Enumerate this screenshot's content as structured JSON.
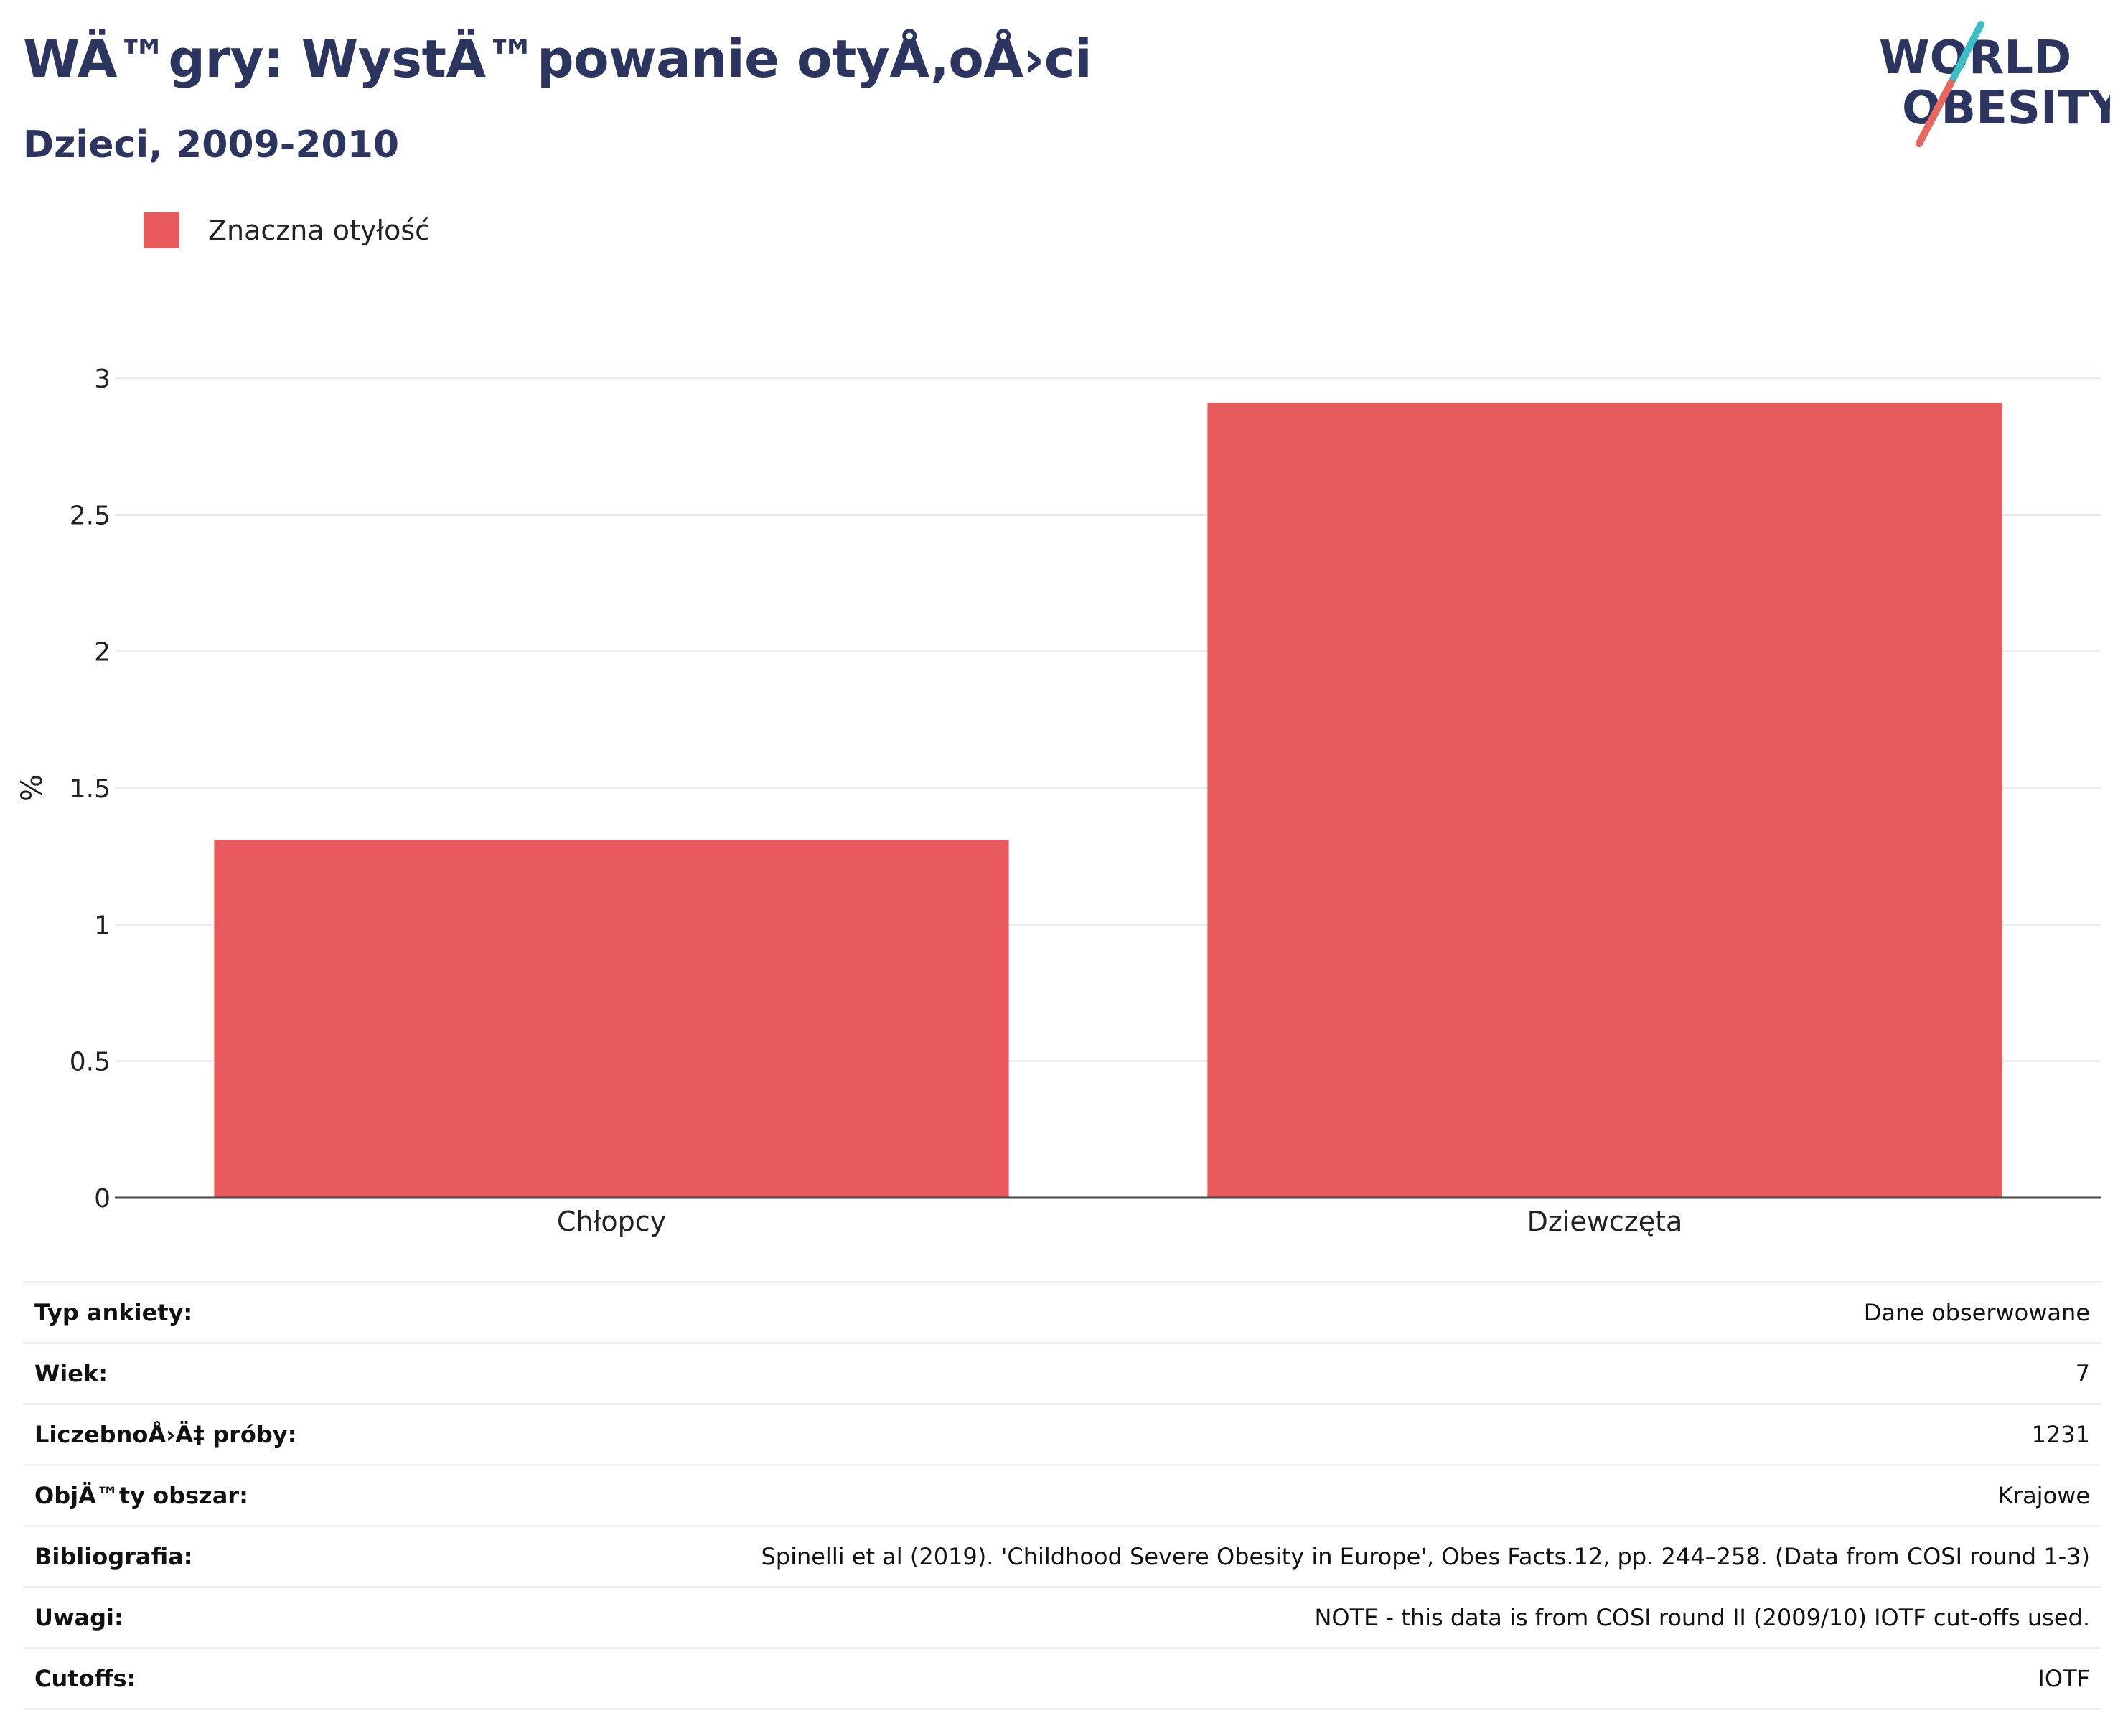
{
  "header": {
    "title": "WÄ™gry: WystÄ™powanie otyÅ‚oÅ›ci",
    "subtitle": "Dzieci, 2009-2010"
  },
  "logo": {
    "line1": "WORLD",
    "line2": "OBESITY"
  },
  "colors": {
    "brand_navy": "#2b3560",
    "bar": "#e95a5c",
    "logo_teal": "#3bbfc4",
    "logo_coral": "#e8685f",
    "grid": "#e9ecf2",
    "axis": "#444444"
  },
  "chart_data": {
    "type": "bar",
    "categories": [
      "Chłopcy",
      "Dziewczęta"
    ],
    "series": [
      {
        "name": "Znaczna otyłość",
        "values": [
          1.31,
          2.91
        ]
      }
    ],
    "xlabel": "",
    "ylabel": "%",
    "ylim": [
      0,
      3
    ],
    "yticks": [
      0,
      0.5,
      1,
      1.5,
      2,
      2.5,
      3
    ],
    "ytick_labels": [
      "0",
      "0.5",
      "1",
      "1.5",
      "2",
      "2.5",
      "3"
    ],
    "grid": true,
    "legend_position": "top-left"
  },
  "info_table": [
    {
      "label": "Typ ankiety:",
      "value": "Dane obserwowane"
    },
    {
      "label": "Wiek:",
      "value": "7"
    },
    {
      "label": "LiczebnoÅ›Ä‡ próby:",
      "value": "1231"
    },
    {
      "label": "ObjÄ™ty obszar:",
      "value": "Krajowe"
    },
    {
      "label": "Bibliografia:",
      "value": "Spinelli et al (2019). 'Childhood Severe Obesity in Europe', Obes Facts.12, pp. 244–258. (Data from COSI round 1-3)"
    },
    {
      "label": "Uwagi:",
      "value": "NOTE - this data is from COSI round II (2009/10) IOTF cut-offs used."
    },
    {
      "label": "Cutoffs:",
      "value": "IOTF"
    }
  ]
}
